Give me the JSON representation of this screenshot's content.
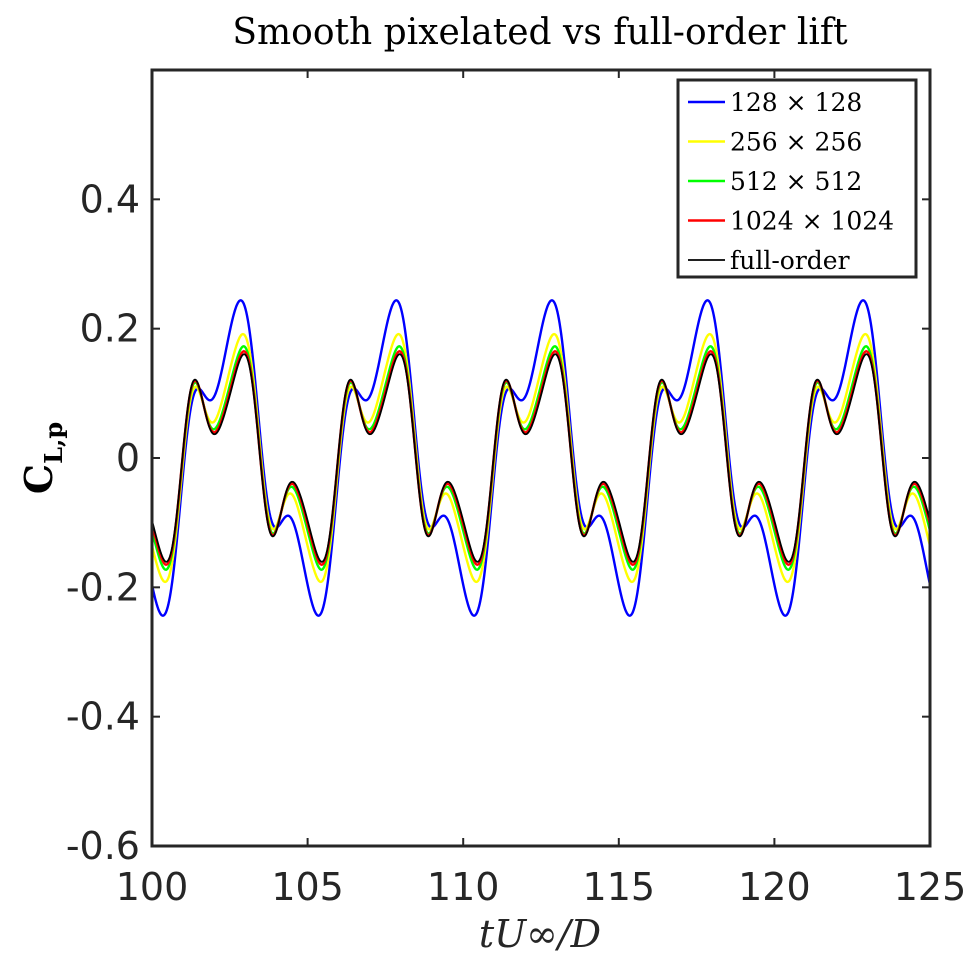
{
  "chart_data": {
    "type": "line",
    "title": "Smooth pixelated vs full-order lift",
    "xlabel": "tU∞/D",
    "ylabel": "C",
    "ylabel_sub": "L,p",
    "xlim": [
      100,
      125
    ],
    "ylim": [
      -0.6,
      0.6
    ],
    "xticks": [
      100,
      105,
      110,
      115,
      120,
      125
    ],
    "xtick_labels": [
      "100",
      "105",
      "110",
      "115",
      "120",
      "125"
    ],
    "yticks": [
      -0.6,
      -0.4,
      -0.2,
      0,
      0.2,
      0.4
    ],
    "ytick_labels": [
      "-0.6",
      "-0.4",
      "-0.2",
      "0",
      "0.2",
      "0.4"
    ],
    "legend_position": "top-right",
    "period": 5,
    "x_start": 100,
    "x_end": 125,
    "series": [
      {
        "name": "128 × 128",
        "color": "#0000ff",
        "shape": {
          "h1": 0.2002,
          "p1": 1.57,
          "h2": 0.0717,
          "p2": 3.2,
          "h3": 0.0068,
          "p3": 0.0
        }
      },
      {
        "name": "256 × 256",
        "color": "#ffff00",
        "shape": {
          "h1": 0.1472,
          "p1": 1.52,
          "h2": 0.0748,
          "p2": 3.29,
          "h3": 0.0119,
          "p3": 0.0
        }
      },
      {
        "name": "512 × 512",
        "color": "#00ff00",
        "shape": {
          "h1": 0.1283,
          "p1": 1.46,
          "h2": 0.0768,
          "p2": 3.34,
          "h3": 0.0125,
          "p3": 0.0
        }
      },
      {
        "name": "1024 × 1024",
        "color": "#ff0000",
        "shape": {
          "h1": 0.1206,
          "p1": 1.43,
          "h2": 0.0776,
          "p2": 3.36,
          "h3": 0.0128,
          "p3": 0.0
        }
      },
      {
        "name": "full-order",
        "color": "#000000",
        "shape": {
          "h1": 0.1161,
          "p1": 1.41,
          "h2": 0.0781,
          "p2": 3.37,
          "h3": 0.0129,
          "p3": 0.0
        }
      }
    ]
  }
}
